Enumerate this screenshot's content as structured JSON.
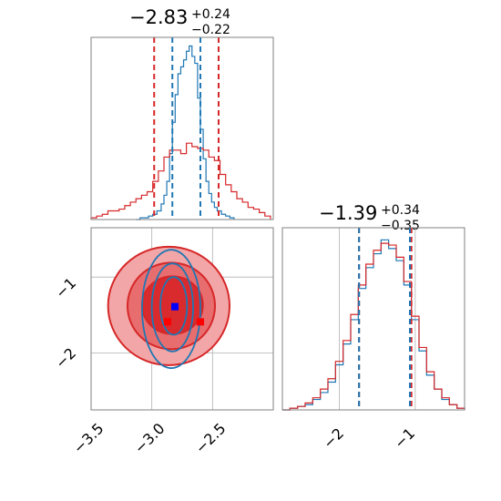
{
  "colors": {
    "blue": "#1f77b4",
    "red": "#d62728",
    "red_fill_light": "#f3a6a7",
    "red_fill_mid": "#e86d6f",
    "red_fill_dark": "#d92b2d",
    "grid": "#b0b0b0",
    "frame": "#808080",
    "marker_blue": "#0000ff",
    "marker_red": "#ff0000"
  },
  "chart_data": [
    {
      "panel": "top-left",
      "type": "histogram",
      "title": {
        "main": "−2.83",
        "sup": "+0.24",
        "sub": "−0.22"
      },
      "xlim": [
        -3.5,
        -2.2
      ],
      "xticks": [],
      "grid": false,
      "red_dashed_lines_x": [
        -3.05,
        -2.59
      ],
      "blue_dashed_lines_x": [
        -2.92,
        -2.72
      ],
      "series": [
        {
          "color": "blue",
          "x": [
            -3.18,
            -3.15,
            -3.12,
            -3.09,
            -3.06,
            -3.03,
            -3.0,
            -2.98,
            -2.96,
            -2.94,
            -2.92,
            -2.9,
            -2.88,
            -2.86,
            -2.84,
            -2.82,
            -2.8,
            -2.78,
            -2.76,
            -2.74,
            -2.72,
            -2.7,
            -2.68,
            -2.66,
            -2.64,
            -2.62,
            -2.6,
            -2.57,
            -2.54,
            -2.51,
            -2.48
          ],
          "y": [
            0.0,
            0.01,
            0.01,
            0.02,
            0.03,
            0.05,
            0.09,
            0.14,
            0.22,
            0.38,
            0.56,
            0.72,
            0.84,
            0.88,
            0.92,
            0.97,
            1.0,
            0.94,
            0.9,
            0.7,
            0.52,
            0.35,
            0.22,
            0.15,
            0.1,
            0.07,
            0.05,
            0.03,
            0.02,
            0.01,
            0.0
          ]
        },
        {
          "color": "red",
          "x": [
            -3.5,
            -3.46,
            -3.42,
            -3.38,
            -3.34,
            -3.3,
            -3.26,
            -3.22,
            -3.18,
            -3.14,
            -3.1,
            -3.06,
            -3.02,
            -2.98,
            -2.94,
            -2.9,
            -2.86,
            -2.82,
            -2.78,
            -2.74,
            -2.7,
            -2.66,
            -2.62,
            -2.58,
            -2.54,
            -2.5,
            -2.46,
            -2.42,
            -2.38,
            -2.34,
            -2.3,
            -2.26,
            -2.22
          ],
          "y": [
            0.01,
            0.02,
            0.03,
            0.05,
            0.05,
            0.06,
            0.08,
            0.1,
            0.12,
            0.14,
            0.16,
            0.22,
            0.28,
            0.36,
            0.4,
            0.4,
            0.38,
            0.44,
            0.42,
            0.41,
            0.4,
            0.36,
            0.34,
            0.26,
            0.2,
            0.16,
            0.12,
            0.1,
            0.07,
            0.06,
            0.04,
            0.02,
            0.01
          ]
        }
      ]
    },
    {
      "panel": "bottom-left",
      "type": "contour",
      "xlim": [
        -3.5,
        -2.0
      ],
      "ylim": [
        -2.75,
        -0.35
      ],
      "xticks": [
        "−3.5",
        "−3.0",
        "−2.5"
      ],
      "yticks": [
        "−1",
        "−2"
      ],
      "grid": true,
      "red_contours": [
        {
          "level": "outer",
          "center": [
            -2.86,
            -1.38
          ],
          "rx": 0.5,
          "ry": 0.78
        },
        {
          "level": "middle",
          "center": [
            -2.84,
            -1.38
          ],
          "rx": 0.36,
          "ry": 0.57
        },
        {
          "level": "inner",
          "center": [
            -2.83,
            -1.37
          ],
          "rx": 0.25,
          "ry": 0.38
        }
      ],
      "blue_contours": [
        {
          "level": "outer",
          "center": [
            -2.84,
            -1.42
          ],
          "rx": 0.24,
          "ry": 0.78
        },
        {
          "level": "middle",
          "center": [
            -2.83,
            -1.4
          ],
          "rx": 0.17,
          "ry": 0.58
        },
        {
          "level": "inner",
          "center": [
            -2.82,
            -1.38
          ],
          "rx": 0.11,
          "ry": 0.38
        }
      ],
      "markers": [
        {
          "color": "marker_blue",
          "x": -2.81,
          "y": -1.39
        },
        {
          "color": "marker_red",
          "x": -2.87,
          "y": -1.59
        },
        {
          "color": "marker_red",
          "x": -2.6,
          "y": -1.59
        }
      ]
    },
    {
      "panel": "bottom-right",
      "type": "histogram",
      "title": {
        "main": "−1.39",
        "sup": "+0.34",
        "sub": "−0.35"
      },
      "xlim": [
        -2.75,
        -0.35
      ],
      "xticks": [
        "−2",
        "−1"
      ],
      "grid": true,
      "red_dashed_lines_x": [
        -1.74,
        -1.05
      ],
      "blue_dashed_lines_x": [
        -1.74,
        -1.07
      ],
      "series": [
        {
          "color": "blue",
          "x": [
            -2.75,
            -2.65,
            -2.55,
            -2.45,
            -2.35,
            -2.25,
            -2.15,
            -2.05,
            -1.95,
            -1.85,
            -1.75,
            -1.65,
            -1.55,
            -1.45,
            -1.35,
            -1.25,
            -1.15,
            -1.05,
            -0.95,
            -0.85,
            -0.75,
            -0.65,
            -0.55,
            -0.45,
            -0.35
          ],
          "y": [
            0.0,
            0.01,
            0.02,
            0.03,
            0.06,
            0.1,
            0.16,
            0.26,
            0.38,
            0.52,
            0.7,
            0.82,
            0.9,
            0.98,
            0.93,
            0.86,
            0.72,
            0.52,
            0.34,
            0.2,
            0.12,
            0.06,
            0.03,
            0.01,
            0.0
          ]
        },
        {
          "color": "red",
          "x": [
            -2.75,
            -2.65,
            -2.55,
            -2.45,
            -2.35,
            -2.25,
            -2.15,
            -2.05,
            -1.95,
            -1.85,
            -1.75,
            -1.65,
            -1.55,
            -1.45,
            -1.35,
            -1.25,
            -1.15,
            -1.05,
            -0.95,
            -0.85,
            -0.75,
            -0.65,
            -0.55,
            -0.45,
            -0.35
          ],
          "y": [
            0.0,
            0.01,
            0.02,
            0.04,
            0.07,
            0.12,
            0.18,
            0.28,
            0.4,
            0.55,
            0.72,
            0.84,
            0.92,
            0.96,
            0.95,
            0.88,
            0.74,
            0.54,
            0.36,
            0.22,
            0.12,
            0.07,
            0.03,
            0.01,
            0.0
          ]
        }
      ]
    }
  ]
}
